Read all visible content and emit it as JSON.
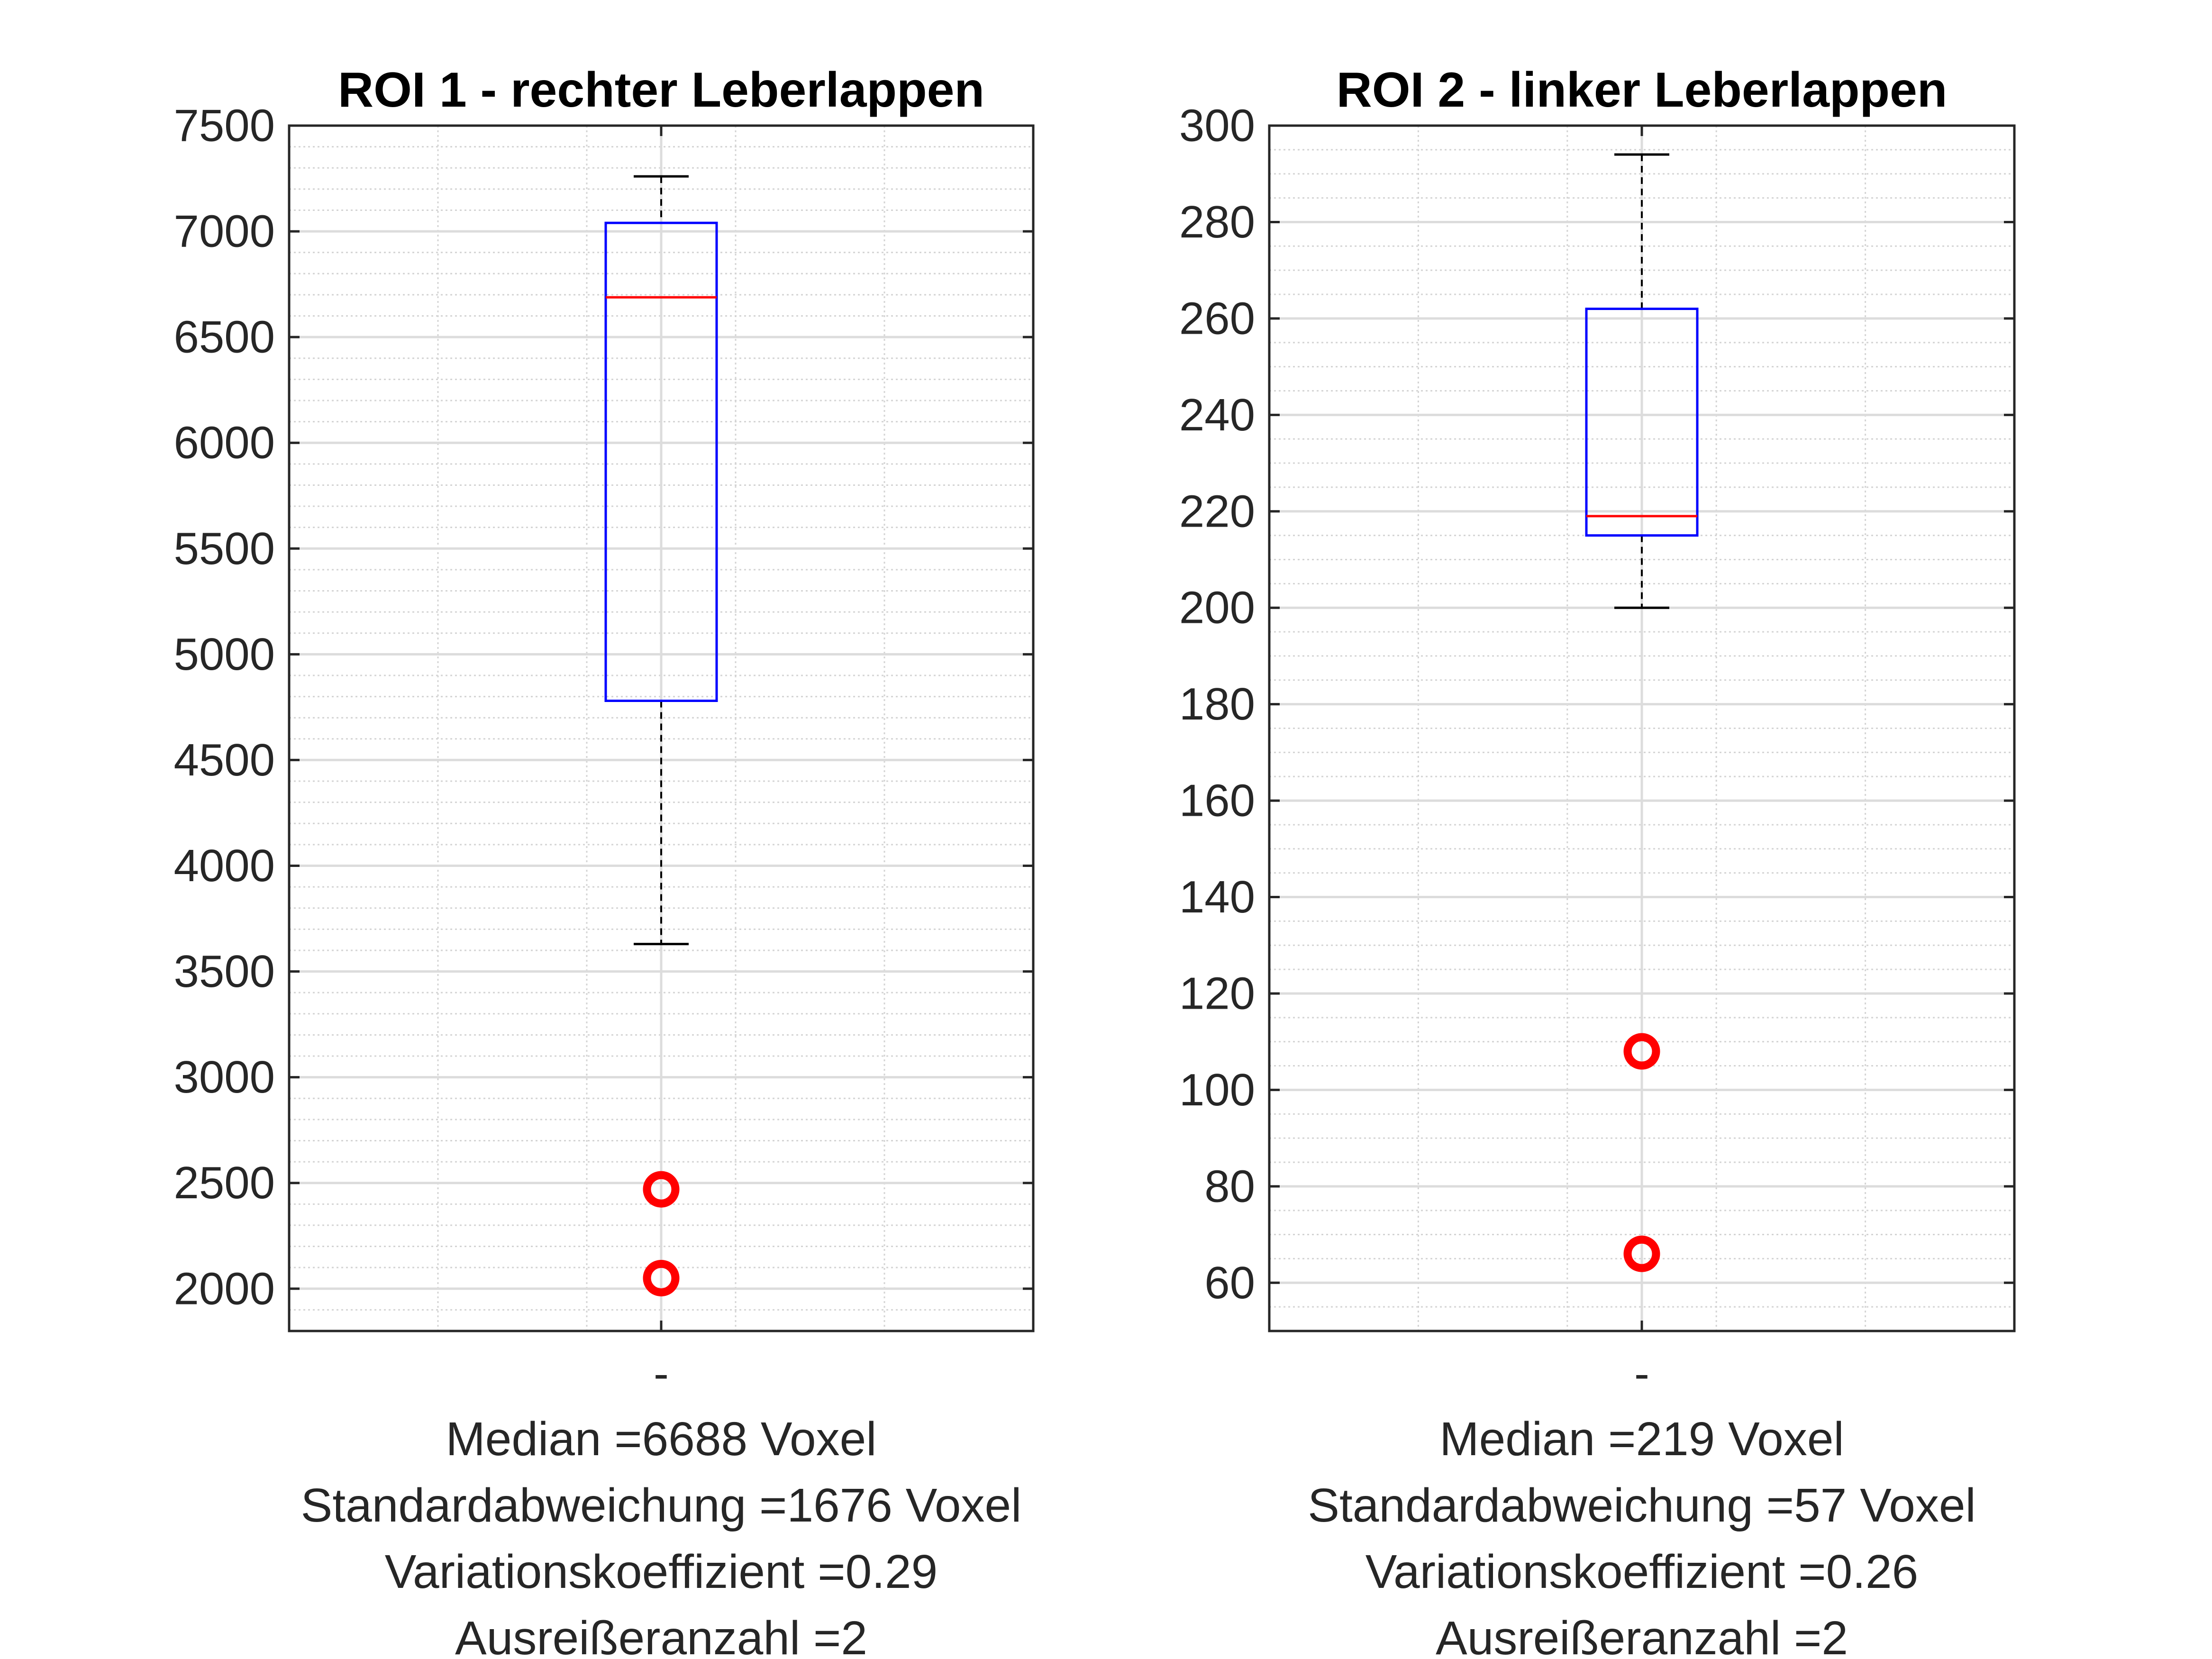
{
  "chart_data": [
    {
      "type": "box",
      "title": "ROI 1 - rechter Leberlappen",
      "xlabel": "",
      "ylabel": "",
      "ylim": [
        1800,
        7500
      ],
      "yticks": [
        2000,
        2500,
        3000,
        3500,
        4000,
        4500,
        5000,
        5500,
        6000,
        6500,
        7000,
        7500
      ],
      "xticklabel": "-",
      "grid": true,
      "minor_grid": true,
      "box": {
        "whisker_low": 3630,
        "q1": 4780,
        "median": 6688,
        "q3": 7040,
        "whisker_high": 7260
      },
      "outliers": [
        2470,
        2050
      ],
      "colors": {
        "box": "#0000ff",
        "median": "#ff0000",
        "outlier": "#ff0000",
        "whisker": "#000000"
      },
      "stats": [
        "Median =6688 Voxel",
        "Standardabweichung =1676 Voxel",
        "Variationskoeffizient =0.29",
        "Ausreißeranzahl =2"
      ]
    },
    {
      "type": "box",
      "title": "ROI 2 - linker Leberlappen",
      "xlabel": "",
      "ylabel": "",
      "ylim": [
        50,
        300
      ],
      "yticks": [
        60,
        80,
        100,
        120,
        140,
        160,
        180,
        200,
        220,
        240,
        260,
        280,
        300
      ],
      "xticklabel": "-",
      "grid": true,
      "minor_grid": true,
      "box": {
        "whisker_low": 200,
        "q1": 215,
        "median": 219,
        "q3": 262,
        "whisker_high": 294
      },
      "outliers": [
        108,
        66
      ],
      "colors": {
        "box": "#0000ff",
        "median": "#ff0000",
        "outlier": "#ff0000",
        "whisker": "#000000"
      },
      "stats": [
        "Median =219 Voxel",
        "Standardabweichung =57 Voxel",
        "Variationskoeffizient =0.26",
        "Ausreißeranzahl =2"
      ]
    }
  ]
}
